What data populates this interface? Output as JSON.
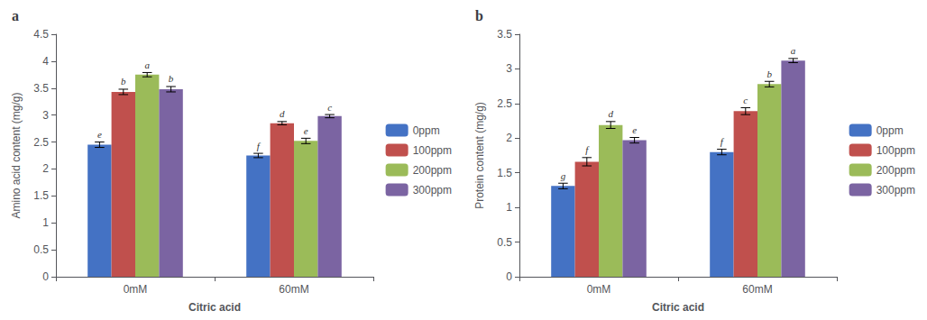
{
  "chart_data": [
    {
      "type": "bar",
      "title": "a",
      "xlabel": "Citric acid",
      "ylabel": "Amino acid content (mg/g)",
      "categories": [
        "0mM",
        "60mM"
      ],
      "series": [
        {
          "name": "0ppm",
          "color": "#4472C4",
          "values": [
            2.45,
            2.25
          ],
          "errors": [
            0.05,
            0.04
          ],
          "letters": [
            "e",
            "f"
          ]
        },
        {
          "name": "100ppm",
          "color": "#C0504D",
          "values": [
            3.43,
            2.85
          ],
          "errors": [
            0.05,
            0.03
          ],
          "letters": [
            "b",
            "d"
          ]
        },
        {
          "name": "200ppm",
          "color": "#9BBB59",
          "values": [
            3.75,
            2.52
          ],
          "errors": [
            0.04,
            0.05
          ],
          "letters": [
            "a",
            "e"
          ]
        },
        {
          "name": "300ppm",
          "color": "#7B64A2",
          "values": [
            3.48,
            2.98
          ],
          "errors": [
            0.05,
            0.03
          ],
          "letters": [
            "b",
            "c"
          ]
        }
      ],
      "ylim": [
        0,
        4.5
      ],
      "yticks": [
        0,
        0.5,
        1,
        1.5,
        2,
        2.5,
        3,
        3.5,
        4,
        4.5
      ],
      "grid": false,
      "legend": "right"
    },
    {
      "type": "bar",
      "title": "b",
      "xlabel": "Citric acid",
      "ylabel": "Protein content (mg/g)",
      "categories": [
        "0mM",
        "60mM"
      ],
      "series": [
        {
          "name": "0ppm",
          "color": "#4472C4",
          "values": [
            1.31,
            1.8
          ],
          "errors": [
            0.04,
            0.04
          ],
          "letters": [
            "g",
            "f"
          ]
        },
        {
          "name": "100ppm",
          "color": "#C0504D",
          "values": [
            1.66,
            2.39
          ],
          "errors": [
            0.06,
            0.05
          ],
          "letters": [
            "f",
            "c"
          ]
        },
        {
          "name": "200ppm",
          "color": "#9BBB59",
          "values": [
            2.19,
            2.78
          ],
          "errors": [
            0.05,
            0.04
          ],
          "letters": [
            "d",
            "b"
          ]
        },
        {
          "name": "300ppm",
          "color": "#7B64A2",
          "values": [
            1.97,
            3.12
          ],
          "errors": [
            0.04,
            0.03
          ],
          "letters": [
            "e",
            "a"
          ]
        }
      ],
      "ylim": [
        0,
        3.5
      ],
      "yticks": [
        0,
        0.5,
        1,
        1.5,
        2,
        2.5,
        3,
        3.5
      ],
      "grid": false,
      "legend": "right"
    }
  ]
}
